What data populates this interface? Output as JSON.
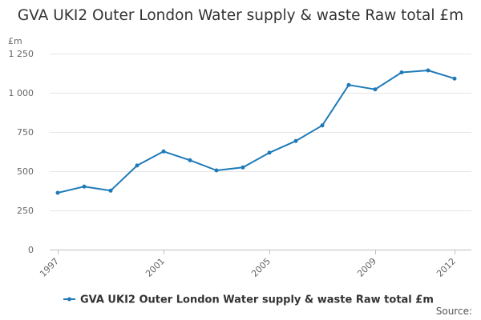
{
  "chart_data": {
    "type": "line",
    "title": "GVA UKI2 Outer London Water supply & waste Raw total £m",
    "y_unit": "£m",
    "x": [
      1997,
      1998,
      1999,
      2000,
      2001,
      2002,
      2003,
      2004,
      2005,
      2006,
      2007,
      2008,
      2009,
      2010,
      2011,
      2012
    ],
    "x_tick_labels": [
      "1997",
      "2001",
      "2005",
      "2009",
      "2012"
    ],
    "series": [
      {
        "name": "GVA UKI2 Outer London Water supply & waste Raw total £m",
        "color": "#1f7ab8",
        "values": [
          362,
          402,
          376,
          536,
          626,
          570,
          505,
          524,
          618,
          693,
          792,
          1050,
          1022,
          1130,
          1143,
          1091
        ]
      }
    ],
    "ylim": [
      0,
      1250
    ],
    "y_ticks": [
      0,
      250,
      500,
      750,
      1000,
      1250
    ],
    "y_tick_labels": [
      "0",
      "250",
      "500",
      "750",
      "1 000",
      "1 250"
    ],
    "grid": "horizontal",
    "legend_position": "bottom",
    "source_label": "Source:"
  }
}
